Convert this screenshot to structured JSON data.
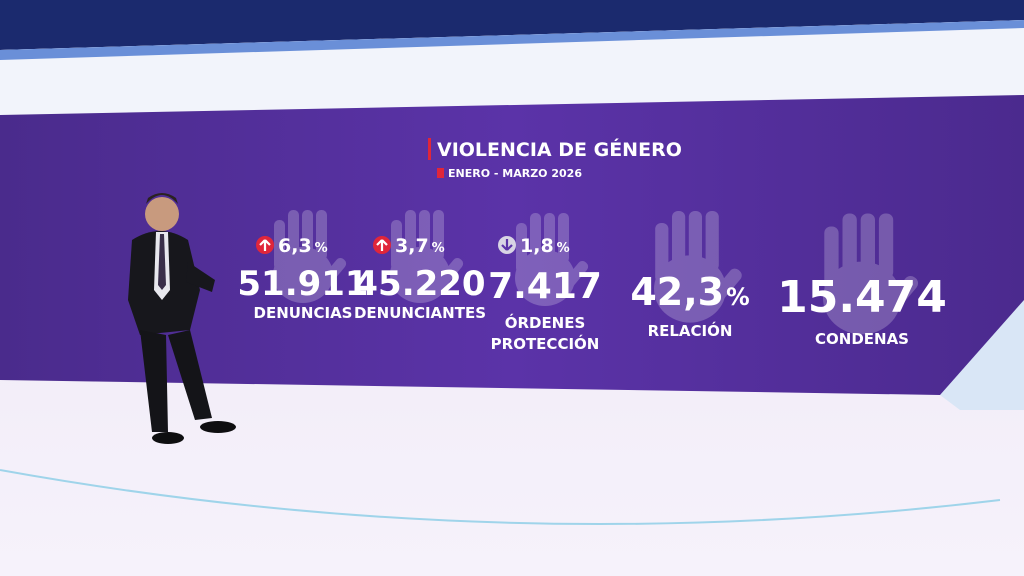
{
  "header": {
    "title": "VIOLENCIA DE GÉNERO",
    "subtitle": "ENERO - MARZO 2026"
  },
  "stats": [
    {
      "trend": "up",
      "change": "6,3",
      "unit": "%",
      "value": "51.911",
      "label": [
        "DENUNCIAS"
      ]
    },
    {
      "trend": "up",
      "change": "3,7",
      "unit": "%",
      "value": "45.220",
      "label": [
        "DENUNCIANTES"
      ]
    },
    {
      "trend": "down",
      "change": "1,8",
      "unit": "%",
      "value": "7.417",
      "label": [
        "ÓRDENES",
        "PROTECCIÓN"
      ]
    },
    {
      "value": "42,3",
      "unit": "%",
      "label": [
        "RELACIÓN"
      ]
    },
    {
      "value": "15.474",
      "label": [
        "CONDENAS"
      ]
    }
  ]
}
